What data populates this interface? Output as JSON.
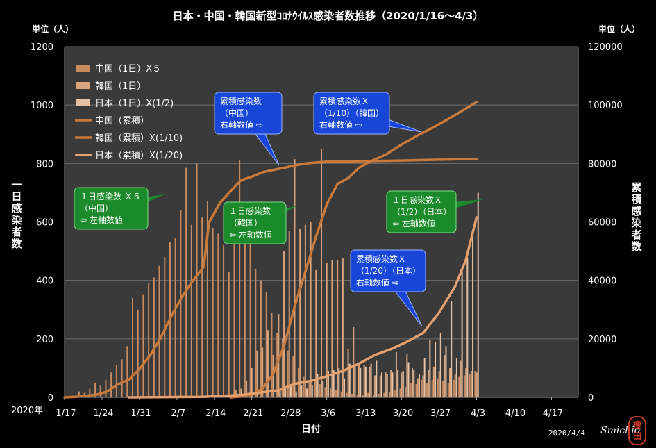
{
  "chart_data": {
    "type": "bar+line",
    "title": "日本・中国・韓国新型ｺﾛﾅｳｲﾙｽ感染者数推移（2020/1/16～4/3）",
    "left_axis": {
      "unit": "単位（人）",
      "label": "一日感染者数",
      "range": [
        0,
        1200
      ],
      "ticks": [
        "0",
        "200",
        "400",
        "600",
        "800",
        "1000",
        "1200"
      ]
    },
    "right_axis": {
      "unit": "単位（人）",
      "label": "累積感染者数",
      "range": [
        0,
        120000
      ],
      "ticks": [
        "0",
        "20000",
        "40000",
        "60000",
        "80000",
        "100000",
        "120000"
      ]
    },
    "year_label": "2020年",
    "xlabel": "日付",
    "x_ticks": [
      "1/17",
      "1/24",
      "1/31",
      "2/7",
      "2/14",
      "2/21",
      "2/28",
      "3/6",
      "3/13",
      "3/20",
      "3/27",
      "4/3",
      "4/10",
      "4/17"
    ],
    "x_start_date": "2020-01-17",
    "grid": true,
    "legend_position": "top-left",
    "legend": [
      {
        "label": "中国（1日）X５",
        "kind": "bar"
      },
      {
        "label": "韓国（1日）",
        "kind": "bar"
      },
      {
        "label": "日本（1日）X(1/2)",
        "kind": "bar"
      },
      {
        "label": "中国（累積）",
        "kind": "line"
      },
      {
        "label": "韓国（累積）X(1/10)",
        "kind": "line"
      },
      {
        "label": "日本（累積）X(1/20)",
        "kind": "line"
      }
    ],
    "series": [
      {
        "name": "中国（1日）X５",
        "kind": "bar",
        "axis": "left",
        "color": "#c98a5e",
        "points": [
          [
            "2020-01-20",
            20
          ],
          [
            "2020-01-21",
            15
          ],
          [
            "2020-01-22",
            30
          ],
          [
            "2020-01-23",
            50
          ],
          [
            "2020-01-24",
            40
          ],
          [
            "2020-01-25",
            60
          ],
          [
            "2020-01-26",
            85
          ],
          [
            "2020-01-27",
            110
          ],
          [
            "2020-01-28",
            130
          ],
          [
            "2020-01-29",
            175
          ],
          [
            "2020-01-30",
            340
          ],
          [
            "2020-01-31",
            300
          ],
          [
            "2020-02-01",
            350
          ],
          [
            "2020-02-02",
            390
          ],
          [
            "2020-02-03",
            410
          ],
          [
            "2020-02-04",
            450
          ],
          [
            "2020-02-05",
            480
          ],
          [
            "2020-02-06",
            530
          ],
          [
            "2020-02-07",
            545
          ],
          [
            "2020-02-08",
            640
          ],
          [
            "2020-02-09",
            785
          ],
          [
            "2020-02-10",
            590
          ],
          [
            "2020-02-11",
            800
          ],
          [
            "2020-02-12",
            615
          ],
          [
            "2020-02-13",
            670
          ],
          [
            "2020-02-14",
            580
          ],
          [
            "2020-02-15",
            560
          ],
          [
            "2020-02-16",
            520
          ],
          [
            "2020-02-17",
            430
          ],
          [
            "2020-02-18",
            625
          ],
          [
            "2020-02-19",
            810
          ],
          [
            "2020-02-20",
            640
          ],
          [
            "2020-02-21",
            560
          ],
          [
            "2020-02-22",
            440
          ],
          [
            "2020-02-23",
            400
          ],
          [
            "2020-02-24",
            360
          ],
          [
            "2020-02-25",
            290
          ],
          [
            "2020-02-26",
            220
          ],
          [
            "2020-02-27",
            200
          ],
          [
            "2020-02-28",
            160
          ],
          [
            "2020-02-29",
            140
          ],
          [
            "2020-03-01",
            100
          ],
          [
            "2020-03-02",
            70
          ],
          [
            "2020-03-03",
            50
          ],
          [
            "2020-03-04",
            60
          ],
          [
            "2020-03-05",
            45
          ],
          [
            "2020-03-06",
            35
          ],
          [
            "2020-03-07",
            30
          ],
          [
            "2020-03-08",
            25
          ],
          [
            "2020-03-09",
            20
          ],
          [
            "2020-03-10",
            15
          ],
          [
            "2020-03-11",
            12
          ],
          [
            "2020-03-12",
            10
          ],
          [
            "2020-03-13",
            8
          ],
          [
            "2020-03-14",
            15
          ],
          [
            "2020-03-15",
            10
          ],
          [
            "2020-03-16",
            12
          ],
          [
            "2020-03-17",
            15
          ],
          [
            "2020-03-18",
            18
          ],
          [
            "2020-03-19",
            25
          ],
          [
            "2020-03-20",
            30
          ],
          [
            "2020-03-21",
            35
          ],
          [
            "2020-03-22",
            50
          ],
          [
            "2020-03-23",
            45
          ],
          [
            "2020-03-24",
            60
          ],
          [
            "2020-03-25",
            50
          ],
          [
            "2020-03-26",
            60
          ],
          [
            "2020-03-27",
            65
          ],
          [
            "2020-03-28",
            55
          ],
          [
            "2020-03-29",
            50
          ],
          [
            "2020-03-30",
            60
          ],
          [
            "2020-03-31",
            70
          ],
          [
            "2020-04-01",
            75
          ],
          [
            "2020-04-02",
            80
          ],
          [
            "2020-04-03",
            90
          ]
        ]
      },
      {
        "name": "韓国（1日）",
        "kind": "bar",
        "axis": "left",
        "color": "#d9a37c",
        "points": [
          [
            "2020-02-18",
            25
          ],
          [
            "2020-02-19",
            30
          ],
          [
            "2020-02-20",
            55
          ],
          [
            "2020-02-21",
            100
          ],
          [
            "2020-02-22",
            160
          ],
          [
            "2020-02-23",
            170
          ],
          [
            "2020-02-24",
            230
          ],
          [
            "2020-02-25",
            145
          ],
          [
            "2020-02-26",
            285
          ],
          [
            "2020-02-27",
            500
          ],
          [
            "2020-02-28",
            570
          ],
          [
            "2020-02-29",
            815
          ],
          [
            "2020-03-01",
            575
          ],
          [
            "2020-03-02",
            590
          ],
          [
            "2020-03-03",
            600
          ],
          [
            "2020-03-04",
            435
          ],
          [
            "2020-03-05",
            850
          ],
          [
            "2020-03-06",
            460
          ],
          [
            "2020-03-07",
            470
          ],
          [
            "2020-03-08",
            470
          ],
          [
            "2020-03-09",
            475
          ],
          [
            "2020-03-10",
            165
          ],
          [
            "2020-03-11",
            240
          ],
          [
            "2020-03-12",
            115
          ],
          [
            "2020-03-13",
            110
          ],
          [
            "2020-03-14",
            105
          ],
          [
            "2020-03-15",
            75
          ],
          [
            "2020-03-16",
            75
          ],
          [
            "2020-03-17",
            85
          ],
          [
            "2020-03-18",
            95
          ],
          [
            "2020-03-19",
            155
          ],
          [
            "2020-03-20",
            85
          ],
          [
            "2020-03-21",
            150
          ],
          [
            "2020-03-22",
            100
          ],
          [
            "2020-03-23",
            65
          ],
          [
            "2020-03-24",
            75
          ],
          [
            "2020-03-25",
            95
          ],
          [
            "2020-03-26",
            105
          ],
          [
            "2020-03-27",
            90
          ],
          [
            "2020-03-28",
            145
          ],
          [
            "2020-03-29",
            100
          ],
          [
            "2020-03-30",
            80
          ],
          [
            "2020-03-31",
            125
          ],
          [
            "2020-04-01",
            100
          ],
          [
            "2020-04-02",
            90
          ],
          [
            "2020-04-03",
            85
          ]
        ]
      },
      {
        "name": "日本（1日）X(1/2)",
        "kind": "bar",
        "axis": "left",
        "color": "#e8c2a2",
        "points": [
          [
            "2020-02-26",
            25
          ],
          [
            "2020-02-27",
            30
          ],
          [
            "2020-02-28",
            45
          ],
          [
            "2020-02-29",
            20
          ],
          [
            "2020-03-01",
            40
          ],
          [
            "2020-03-02",
            30
          ],
          [
            "2020-03-03",
            40
          ],
          [
            "2020-03-04",
            80
          ],
          [
            "2020-03-05",
            55
          ],
          [
            "2020-03-06",
            90
          ],
          [
            "2020-03-07",
            95
          ],
          [
            "2020-03-08",
            100
          ],
          [
            "2020-03-09",
            65
          ],
          [
            "2020-03-10",
            115
          ],
          [
            "2020-03-11",
            110
          ],
          [
            "2020-03-12",
            100
          ],
          [
            "2020-03-13",
            105
          ],
          [
            "2020-03-14",
            115
          ],
          [
            "2020-03-15",
            125
          ],
          [
            "2020-03-16",
            85
          ],
          [
            "2020-03-17",
            80
          ],
          [
            "2020-03-18",
            85
          ],
          [
            "2020-03-19",
            95
          ],
          [
            "2020-03-20",
            90
          ],
          [
            "2020-03-21",
            120
          ],
          [
            "2020-03-22",
            95
          ],
          [
            "2020-03-23",
            80
          ],
          [
            "2020-03-24",
            135
          ],
          [
            "2020-03-25",
            195
          ],
          [
            "2020-03-26",
            190
          ],
          [
            "2020-03-27",
            220
          ],
          [
            "2020-03-28",
            175
          ],
          [
            "2020-03-29",
            330
          ],
          [
            "2020-03-30",
            135
          ],
          [
            "2020-03-31",
            430
          ],
          [
            "2020-04-01",
            475
          ],
          [
            "2020-04-02",
            560
          ],
          [
            "2020-04-03",
            700
          ]
        ]
      },
      {
        "name": "中国（累積）",
        "kind": "line",
        "axis": "right",
        "color": "#c97a3a",
        "points": [
          [
            "2020-01-17",
            0
          ],
          [
            "2020-01-19",
            200
          ],
          [
            "2020-01-21",
            500
          ],
          [
            "2020-01-23",
            900
          ],
          [
            "2020-01-25",
            2000
          ],
          [
            "2020-01-27",
            4500
          ],
          [
            "2020-01-29",
            6000
          ],
          [
            "2020-01-31",
            9700
          ],
          [
            "2020-02-02",
            14400
          ],
          [
            "2020-02-04",
            20400
          ],
          [
            "2020-02-06",
            28000
          ],
          [
            "2020-02-08",
            34500
          ],
          [
            "2020-02-10",
            40000
          ],
          [
            "2020-02-12",
            44500
          ],
          [
            "2020-02-13",
            59800
          ],
          [
            "2020-02-15",
            66400
          ],
          [
            "2020-02-17",
            70500
          ],
          [
            "2020-02-19",
            74300
          ],
          [
            "2020-02-21",
            75500
          ],
          [
            "2020-02-23",
            77000
          ],
          [
            "2020-02-25",
            77800
          ],
          [
            "2020-02-27",
            78500
          ],
          [
            "2020-02-29",
            79300
          ],
          [
            "2020-03-02",
            80000
          ],
          [
            "2020-03-06",
            80600
          ],
          [
            "2020-03-13",
            80800
          ],
          [
            "2020-03-20",
            81000
          ],
          [
            "2020-03-27",
            81300
          ],
          [
            "2020-04-03",
            81600
          ]
        ]
      },
      {
        "name": "韓国（累積）X(1/10)",
        "kind": "line",
        "axis": "right",
        "color": "#c97a3a",
        "points": [
          [
            "2020-02-17",
            0
          ],
          [
            "2020-02-19",
            300
          ],
          [
            "2020-02-21",
            1000
          ],
          [
            "2020-02-23",
            3000
          ],
          [
            "2020-02-25",
            8000
          ],
          [
            "2020-02-27",
            17500
          ],
          [
            "2020-02-29",
            31000
          ],
          [
            "2020-03-02",
            43000
          ],
          [
            "2020-03-04",
            55000
          ],
          [
            "2020-03-06",
            66000
          ],
          [
            "2020-03-08",
            73000
          ],
          [
            "2020-03-10",
            75000
          ],
          [
            "2020-03-12",
            78500
          ],
          [
            "2020-03-14",
            80600
          ],
          [
            "2020-03-17",
            83000
          ],
          [
            "2020-03-20",
            86500
          ],
          [
            "2020-03-23",
            89600
          ],
          [
            "2020-03-26",
            92400
          ],
          [
            "2020-03-30",
            96600
          ],
          [
            "2020-04-03",
            101000
          ]
        ]
      },
      {
        "name": "日本（累積）X(1/20)",
        "kind": "line",
        "axis": "right",
        "color": "#e4a06e",
        "points": [
          [
            "2020-01-29",
            0
          ],
          [
            "2020-02-05",
            100
          ],
          [
            "2020-02-12",
            200
          ],
          [
            "2020-02-19",
            800
          ],
          [
            "2020-02-26",
            2400
          ],
          [
            "2020-02-29",
            4600
          ],
          [
            "2020-03-03",
            5600
          ],
          [
            "2020-03-06",
            7200
          ],
          [
            "2020-03-09",
            9000
          ],
          [
            "2020-03-12",
            11500
          ],
          [
            "2020-03-15",
            14500
          ],
          [
            "2020-03-18",
            16500
          ],
          [
            "2020-03-21",
            19000
          ],
          [
            "2020-03-24",
            22000
          ],
          [
            "2020-03-27",
            29000
          ],
          [
            "2020-03-30",
            38000
          ],
          [
            "2020-04-01",
            47000
          ],
          [
            "2020-04-03",
            61600
          ]
        ]
      }
    ],
    "annotations": [
      {
        "id": "cn-cum",
        "lines": [
          "累積感染数",
          "（中国）",
          "右軸数値 ⇨"
        ],
        "color": "blue"
      },
      {
        "id": "kr-cum",
        "lines": [
          "累積感染数Ｘ",
          "（1/10）（韓国）",
          "右軸数値 ⇨"
        ],
        "color": "blue"
      },
      {
        "id": "jp-cum",
        "lines": [
          "累積感染数Ｘ",
          "（1/20）（日本）",
          "右軸数値 ⇨"
        ],
        "color": "blue"
      },
      {
        "id": "cn-daily",
        "lines": [
          "１日感染数 Ｘ５",
          "（中国）",
          "⇦ 左軸数値"
        ],
        "color": "green"
      },
      {
        "id": "kr-daily",
        "lines": [
          "１日感染数",
          "（韓国）",
          "⇦ 左軸数値"
        ],
        "color": "green"
      },
      {
        "id": "jp-daily",
        "lines": [
          "１日感染数Ｘ",
          "（1/2）（日本）",
          "⇦ 左軸数値"
        ],
        "color": "green"
      }
    ],
    "footer": {
      "date": "2020/4/4",
      "author": "Smichio",
      "seal": "痩田"
    }
  }
}
